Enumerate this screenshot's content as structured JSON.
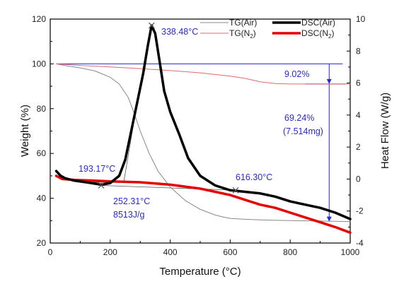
{
  "chart_data": {
    "type": "line",
    "xlabel": "Temperature (°C)",
    "ylabel_left": "Weight (%)",
    "ylabel_right": "Heat Flow (W/g)",
    "xlim": [
      0,
      1000
    ],
    "ylim_left": [
      20,
      120
    ],
    "ylim_right": [
      -4,
      10
    ],
    "xticks": [
      "0",
      "200",
      "400",
      "600",
      "800",
      "1000"
    ],
    "yticks_left": [
      "20",
      "40",
      "60",
      "80",
      "100",
      "120"
    ],
    "yticks_right": [
      "-4",
      "-2",
      "0",
      "2",
      "4",
      "6",
      "8",
      "10"
    ],
    "grid": false,
    "legend_position": "top-right",
    "colors": {
      "tg_air": "#888888",
      "tg_n2": "#e06a6a",
      "dsc_air": "#000000",
      "dsc_n2": "#e60000",
      "annotation": "#2a2acc"
    },
    "series": [
      {
        "name": "TG(Air)",
        "axis": "left",
        "x": [
          20,
          50,
          100,
          150,
          200,
          230,
          260,
          280,
          300,
          330,
          360,
          400,
          450,
          500,
          550,
          580,
          600,
          650,
          700,
          800,
          900,
          1000
        ],
        "y": [
          100,
          99.2,
          98.2,
          96.8,
          94,
          91,
          85,
          78,
          70,
          60,
          52,
          45,
          39,
          35,
          32.5,
          31.5,
          31,
          30.6,
          30.3,
          30,
          29.8,
          29.6
        ]
      },
      {
        "name": "DSC(Air)",
        "axis": "right",
        "x": [
          20,
          35,
          50,
          80,
          120,
          170,
          200,
          230,
          250,
          270,
          290,
          310,
          325,
          338,
          350,
          365,
          380,
          400,
          430,
          460,
          500,
          550,
          600,
          650,
          700,
          750,
          800,
          850,
          900,
          950,
          1000
        ],
        "y": [
          0.5,
          0.2,
          0.05,
          -0.1,
          -0.2,
          -0.35,
          -0.25,
          0.2,
          1.2,
          3.0,
          4.8,
          6.6,
          8.3,
          9.6,
          9.1,
          7.3,
          5.5,
          4.2,
          2.8,
          1.3,
          0.2,
          -0.4,
          -0.7,
          -0.8,
          -0.9,
          -1.1,
          -1.4,
          -1.6,
          -1.8,
          -2.1,
          -2.5
        ]
      },
      {
        "name": "TG(N2)",
        "axis": "left",
        "x": [
          20,
          100,
          200,
          300,
          400,
          500,
          600,
          650,
          700,
          750,
          800,
          900,
          1000
        ],
        "y": [
          100,
          99.3,
          98.6,
          97.9,
          97,
          96,
          94.5,
          93.5,
          92,
          91.2,
          91,
          91,
          91
        ]
      },
      {
        "name": "DSC(N2)",
        "axis": "right",
        "x": [
          20,
          40,
          80,
          150,
          200,
          300,
          400,
          500,
          550,
          600,
          650,
          700,
          750,
          800,
          850,
          900,
          950,
          1000
        ],
        "y": [
          0.2,
          0.0,
          -0.05,
          -0.1,
          -0.15,
          -0.2,
          -0.35,
          -0.6,
          -0.8,
          -1.0,
          -1.3,
          -1.6,
          -1.8,
          -2.1,
          -2.4,
          -2.7,
          -3.0,
          -3.35
        ]
      }
    ],
    "legend": [
      {
        "label": "TG(Air)",
        "key": "tg_air"
      },
      {
        "label": "DSC(Air)",
        "key": "dsc_air"
      },
      {
        "label": "TG(N",
        "sub": "2",
        "close": ")",
        "key": "tg_n2"
      },
      {
        "label": "DSC(N",
        "sub": "2",
        "close": ")",
        "key": "dsc_n2"
      }
    ],
    "annotations": {
      "peak_temp": "338.48°C",
      "mass_loss_n2": "9.02%",
      "mass_loss_air": "69.24%",
      "mass_loss_air_mg": "(7.514mg)",
      "onset_temp": "193.17°C",
      "enthalpy_temp": "252.31°C",
      "enthalpy_value": "8513J/g",
      "end_temp": "616.30°C"
    },
    "markers": [
      {
        "x": 170,
        "y_right": -0.4
      },
      {
        "x": 338,
        "y_right": 9.6
      },
      {
        "x": 618,
        "y_right": -0.7
      }
    ],
    "guide_levels": {
      "upper_weight": 100,
      "mid_weight": 91,
      "low_weight": 29.6,
      "arrow_x": 930
    }
  }
}
